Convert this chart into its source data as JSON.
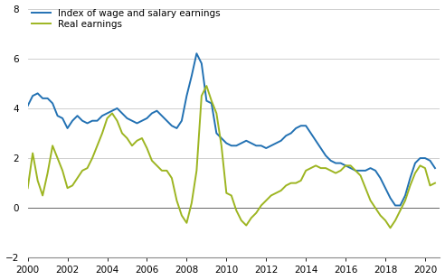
{
  "title": "",
  "blue_label": "Index of wage and salary earnings",
  "green_label": "Real earnings",
  "blue_color": "#2271b3",
  "green_color": "#9db521",
  "background_color": "#ffffff",
  "grid_color": "#c8c8c8",
  "ylim": [
    -2,
    8
  ],
  "yticks": [
    -2,
    0,
    2,
    4,
    6,
    8
  ],
  "xtick_years": [
    2000,
    2002,
    2004,
    2006,
    2008,
    2010,
    2012,
    2014,
    2016,
    2018,
    2020
  ],
  "blue_data": [
    [
      2000.0,
      4.1
    ],
    [
      2000.25,
      4.5
    ],
    [
      2000.5,
      4.6
    ],
    [
      2000.75,
      4.4
    ],
    [
      2001.0,
      4.4
    ],
    [
      2001.25,
      4.2
    ],
    [
      2001.5,
      3.7
    ],
    [
      2001.75,
      3.6
    ],
    [
      2002.0,
      3.2
    ],
    [
      2002.25,
      3.5
    ],
    [
      2002.5,
      3.7
    ],
    [
      2002.75,
      3.5
    ],
    [
      2003.0,
      3.4
    ],
    [
      2003.25,
      3.5
    ],
    [
      2003.5,
      3.5
    ],
    [
      2003.75,
      3.7
    ],
    [
      2004.0,
      3.8
    ],
    [
      2004.25,
      3.9
    ],
    [
      2004.5,
      4.0
    ],
    [
      2004.75,
      3.8
    ],
    [
      2005.0,
      3.6
    ],
    [
      2005.25,
      3.5
    ],
    [
      2005.5,
      3.4
    ],
    [
      2005.75,
      3.5
    ],
    [
      2006.0,
      3.6
    ],
    [
      2006.25,
      3.8
    ],
    [
      2006.5,
      3.9
    ],
    [
      2006.75,
      3.7
    ],
    [
      2007.0,
      3.5
    ],
    [
      2007.25,
      3.3
    ],
    [
      2007.5,
      3.2
    ],
    [
      2007.75,
      3.5
    ],
    [
      2008.0,
      4.5
    ],
    [
      2008.25,
      5.3
    ],
    [
      2008.5,
      6.2
    ],
    [
      2008.75,
      5.8
    ],
    [
      2009.0,
      4.3
    ],
    [
      2009.25,
      4.2
    ],
    [
      2009.5,
      3.0
    ],
    [
      2009.75,
      2.8
    ],
    [
      2010.0,
      2.6
    ],
    [
      2010.25,
      2.5
    ],
    [
      2010.5,
      2.5
    ],
    [
      2010.75,
      2.6
    ],
    [
      2011.0,
      2.7
    ],
    [
      2011.25,
      2.6
    ],
    [
      2011.5,
      2.5
    ],
    [
      2011.75,
      2.5
    ],
    [
      2012.0,
      2.4
    ],
    [
      2012.25,
      2.5
    ],
    [
      2012.5,
      2.6
    ],
    [
      2012.75,
      2.7
    ],
    [
      2013.0,
      2.9
    ],
    [
      2013.25,
      3.0
    ],
    [
      2013.5,
      3.2
    ],
    [
      2013.75,
      3.3
    ],
    [
      2014.0,
      3.3
    ],
    [
      2014.25,
      3.0
    ],
    [
      2014.5,
      2.7
    ],
    [
      2014.75,
      2.4
    ],
    [
      2015.0,
      2.1
    ],
    [
      2015.25,
      1.9
    ],
    [
      2015.5,
      1.8
    ],
    [
      2015.75,
      1.8
    ],
    [
      2016.0,
      1.7
    ],
    [
      2016.25,
      1.6
    ],
    [
      2016.5,
      1.5
    ],
    [
      2016.75,
      1.5
    ],
    [
      2017.0,
      1.5
    ],
    [
      2017.25,
      1.6
    ],
    [
      2017.5,
      1.5
    ],
    [
      2017.75,
      1.2
    ],
    [
      2018.0,
      0.8
    ],
    [
      2018.25,
      0.4
    ],
    [
      2018.5,
      0.1
    ],
    [
      2018.75,
      0.1
    ],
    [
      2019.0,
      0.5
    ],
    [
      2019.25,
      1.2
    ],
    [
      2019.5,
      1.8
    ],
    [
      2019.75,
      2.0
    ],
    [
      2020.0,
      2.0
    ],
    [
      2020.25,
      1.9
    ],
    [
      2020.5,
      1.6
    ]
  ],
  "green_data": [
    [
      2000.0,
      0.8
    ],
    [
      2000.25,
      2.2
    ],
    [
      2000.5,
      1.1
    ],
    [
      2000.75,
      0.5
    ],
    [
      2001.0,
      1.4
    ],
    [
      2001.25,
      2.5
    ],
    [
      2001.5,
      2.0
    ],
    [
      2001.75,
      1.5
    ],
    [
      2002.0,
      0.8
    ],
    [
      2002.25,
      0.9
    ],
    [
      2002.5,
      1.2
    ],
    [
      2002.75,
      1.5
    ],
    [
      2003.0,
      1.6
    ],
    [
      2003.25,
      2.0
    ],
    [
      2003.5,
      2.5
    ],
    [
      2003.75,
      3.0
    ],
    [
      2004.0,
      3.6
    ],
    [
      2004.25,
      3.8
    ],
    [
      2004.5,
      3.5
    ],
    [
      2004.75,
      3.0
    ],
    [
      2005.0,
      2.8
    ],
    [
      2005.25,
      2.5
    ],
    [
      2005.5,
      2.7
    ],
    [
      2005.75,
      2.8
    ],
    [
      2006.0,
      2.4
    ],
    [
      2006.25,
      1.9
    ],
    [
      2006.5,
      1.7
    ],
    [
      2006.75,
      1.5
    ],
    [
      2007.0,
      1.5
    ],
    [
      2007.25,
      1.2
    ],
    [
      2007.5,
      0.3
    ],
    [
      2007.75,
      -0.3
    ],
    [
      2008.0,
      -0.6
    ],
    [
      2008.25,
      0.2
    ],
    [
      2008.5,
      1.5
    ],
    [
      2008.75,
      4.5
    ],
    [
      2009.0,
      4.9
    ],
    [
      2009.25,
      4.3
    ],
    [
      2009.5,
      3.8
    ],
    [
      2009.75,
      2.5
    ],
    [
      2010.0,
      0.6
    ],
    [
      2010.25,
      0.5
    ],
    [
      2010.5,
      -0.1
    ],
    [
      2010.75,
      -0.5
    ],
    [
      2011.0,
      -0.7
    ],
    [
      2011.25,
      -0.4
    ],
    [
      2011.5,
      -0.2
    ],
    [
      2011.75,
      0.1
    ],
    [
      2012.0,
      0.3
    ],
    [
      2012.25,
      0.5
    ],
    [
      2012.5,
      0.6
    ],
    [
      2012.75,
      0.7
    ],
    [
      2013.0,
      0.9
    ],
    [
      2013.25,
      1.0
    ],
    [
      2013.5,
      1.0
    ],
    [
      2013.75,
      1.1
    ],
    [
      2014.0,
      1.5
    ],
    [
      2014.25,
      1.6
    ],
    [
      2014.5,
      1.7
    ],
    [
      2014.75,
      1.6
    ],
    [
      2015.0,
      1.6
    ],
    [
      2015.25,
      1.5
    ],
    [
      2015.5,
      1.4
    ],
    [
      2015.75,
      1.5
    ],
    [
      2016.0,
      1.7
    ],
    [
      2016.25,
      1.7
    ],
    [
      2016.5,
      1.5
    ],
    [
      2016.75,
      1.3
    ],
    [
      2017.0,
      0.8
    ],
    [
      2017.25,
      0.3
    ],
    [
      2017.5,
      0.0
    ],
    [
      2017.75,
      -0.3
    ],
    [
      2018.0,
      -0.5
    ],
    [
      2018.25,
      -0.8
    ],
    [
      2018.5,
      -0.5
    ],
    [
      2018.75,
      -0.1
    ],
    [
      2019.0,
      0.3
    ],
    [
      2019.25,
      0.9
    ],
    [
      2019.5,
      1.4
    ],
    [
      2019.75,
      1.7
    ],
    [
      2020.0,
      1.6
    ],
    [
      2020.25,
      0.9
    ],
    [
      2020.5,
      1.0
    ]
  ]
}
